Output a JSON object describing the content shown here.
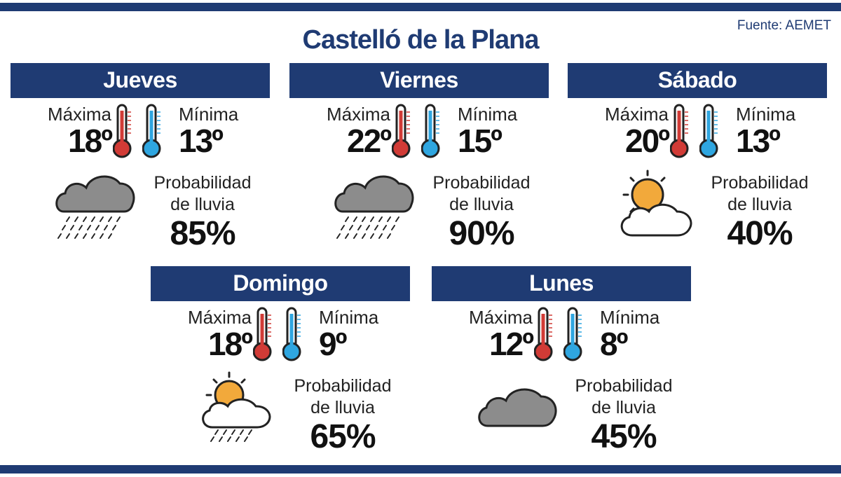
{
  "source": "Fuente: AEMET",
  "title": "Castelló de la Plana",
  "labels": {
    "max": "Máxima",
    "min": "Mínima",
    "prob": "Probabilidad de lluvia"
  },
  "colors": {
    "brand": "#1f3b73",
    "hot": "#d13b36",
    "cold": "#2fa6e0",
    "cloud": "#8c8c8c",
    "sun": "#f2a93b"
  },
  "days": [
    {
      "name": "Jueves",
      "max": "18º",
      "min": "13º",
      "icon": "rain-cloud-icon",
      "rain": "85%"
    },
    {
      "name": "Viernes",
      "max": "22º",
      "min": "15º",
      "icon": "rain-cloud-icon",
      "rain": "90%"
    },
    {
      "name": "Sábado",
      "max": "20º",
      "min": "13º",
      "icon": "partly-cloudy-icon",
      "rain": "40%"
    },
    {
      "name": "Domingo",
      "max": "18º",
      "min": "9º",
      "icon": "sun-cloud-rain-icon",
      "rain": "65%"
    },
    {
      "name": "Lunes",
      "max": "12º",
      "min": "8º",
      "icon": "cloud-icon",
      "rain": "45%"
    }
  ]
}
